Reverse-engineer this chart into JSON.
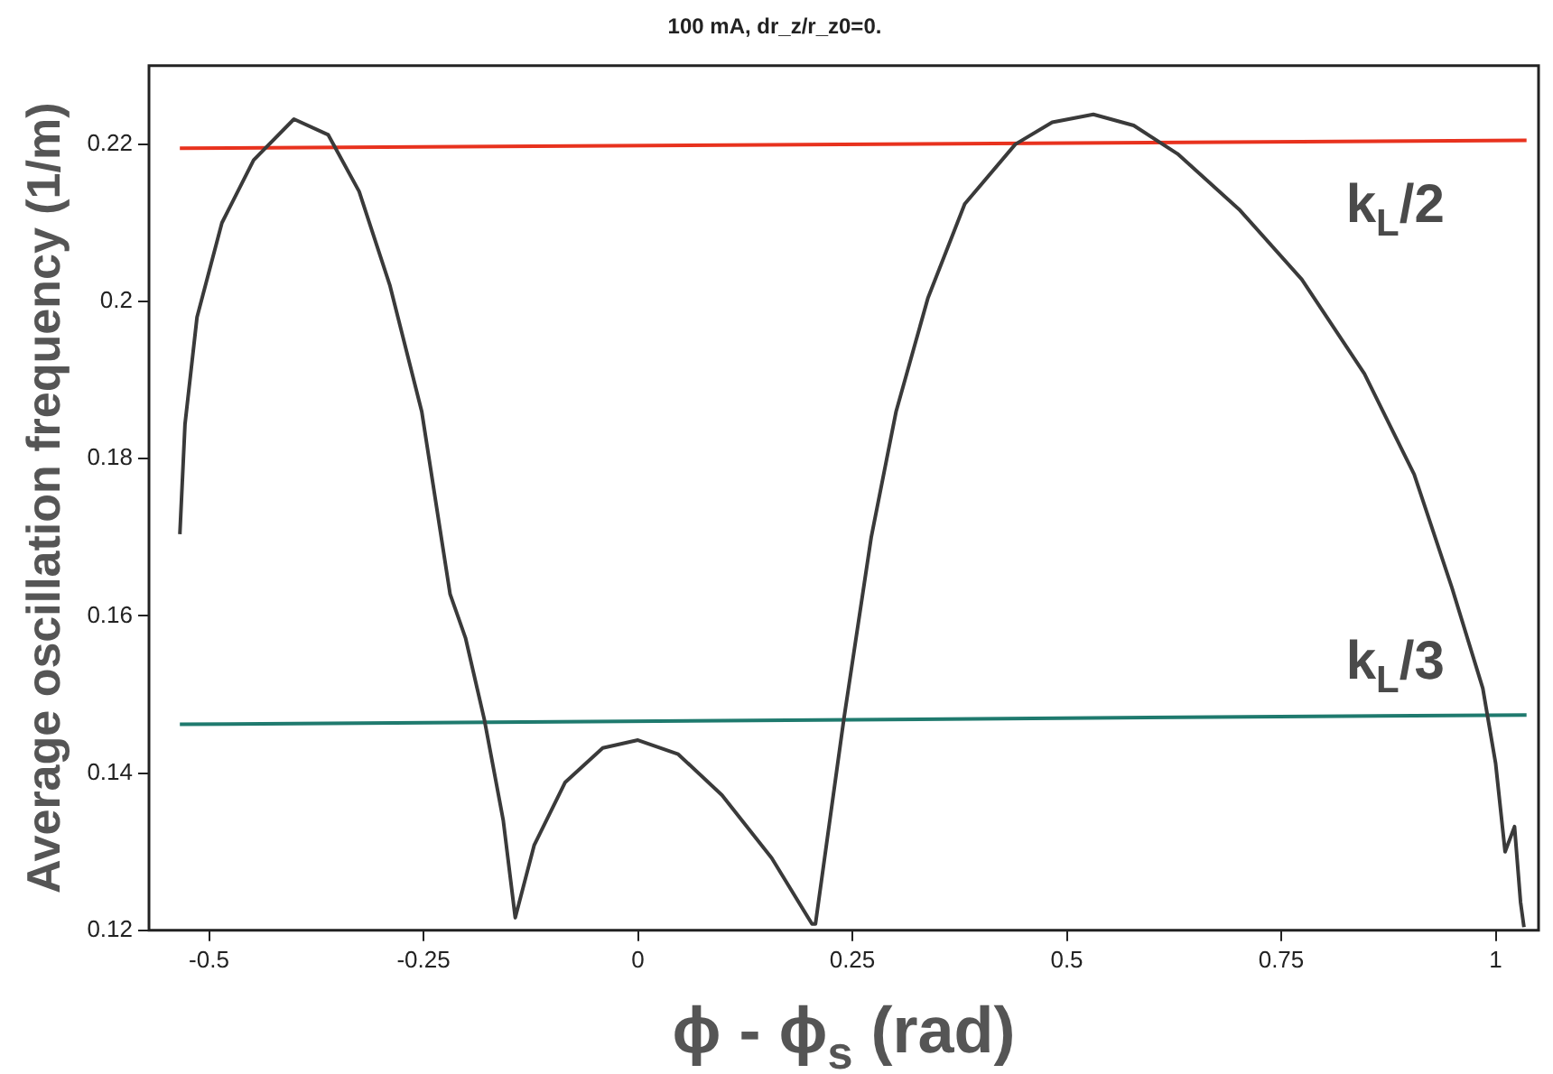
{
  "chart_data": {
    "type": "line",
    "title": "100 mA, dr_z/r_z0=0.",
    "xlabel": "ϕ - ϕ$_{s}$ (rad)",
    "ylabel": "Average oscillation frequency (1/m)",
    "xlim": [
      -0.57,
      1.05
    ],
    "xticks": [
      -0.5,
      -0.25,
      0,
      0.25,
      0.5,
      0.75,
      1
    ],
    "ylim": [
      0.12,
      0.23
    ],
    "yticks": [
      0.12,
      0.14,
      0.16,
      0.18,
      0.2,
      0.22
    ],
    "grid": false,
    "legend": false,
    "marker": "none",
    "line_style": "solid",
    "series": [
      {
        "color": "#3a3a3a",
        "x": [
          -0.534,
          -0.528,
          -0.514,
          -0.485,
          -0.448,
          -0.401,
          -0.361,
          -0.325,
          -0.289,
          -0.252,
          -0.219,
          -0.201,
          -0.179,
          -0.157,
          -0.143,
          -0.121,
          -0.085,
          -0.041,
          0.0,
          0.047,
          0.098,
          0.156,
          0.203,
          0.207,
          0.24,
          0.272,
          0.301,
          0.338,
          0.381,
          0.44,
          0.483,
          0.531,
          0.578,
          0.629,
          0.702,
          0.774,
          0.847,
          0.905,
          0.949,
          0.985,
          1.0,
          1.011,
          1.022,
          1.029,
          1.033
        ],
        "values": [
          0.1704,
          0.1844,
          0.198,
          0.21,
          0.218,
          0.2232,
          0.2212,
          0.214,
          0.202,
          0.186,
          0.1628,
          0.1572,
          0.1468,
          0.134,
          0.1216,
          0.1308,
          0.1388,
          0.1432,
          0.1442,
          0.1424,
          0.1372,
          0.1292,
          0.1208,
          0.1208,
          0.1468,
          0.17,
          0.186,
          0.2004,
          0.2124,
          0.22,
          0.2228,
          0.2238,
          0.2224,
          0.2188,
          0.2116,
          0.2028,
          0.1908,
          0.178,
          0.1636,
          0.1508,
          0.1412,
          0.13,
          0.1332,
          0.1236,
          0.1204
        ]
      },
      {
        "name": "k$_{L}$/2",
        "color": "#e8321e",
        "x": [
          -0.534,
          1.036
        ],
        "values": [
          0.2195,
          0.2205
        ]
      },
      {
        "name": "k$_{L}$/3",
        "color": "#1f7a6e",
        "x": [
          -0.534,
          1.036
        ],
        "values": [
          0.1462,
          0.1474
        ]
      }
    ]
  }
}
